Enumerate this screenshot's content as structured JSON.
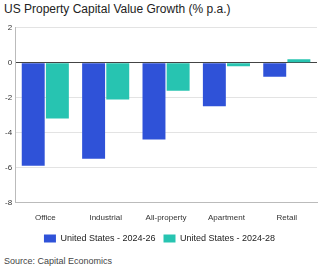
{
  "chart_data": {
    "type": "bar",
    "title": "US Property Capital Value Growth (% p.a.)",
    "source": "Source: Capital Economics",
    "categories": [
      "Office",
      "Industrial",
      "All-property",
      "Apartment",
      "Retail"
    ],
    "series": [
      {
        "name": "United States - 2024-26",
        "color": "#2f52d8",
        "values": [
          -5.9,
          -5.5,
          -4.4,
          -2.5,
          -0.8
        ]
      },
      {
        "name": "United States - 2024-28",
        "color": "#27c4b1",
        "values": [
          -3.2,
          -2.1,
          -1.6,
          -0.2,
          0.2
        ]
      }
    ],
    "ylim": [
      -8,
      2
    ],
    "yticks": [
      -8,
      -6,
      -4,
      -2,
      0,
      2
    ],
    "grid": true,
    "legend": "bottom"
  }
}
